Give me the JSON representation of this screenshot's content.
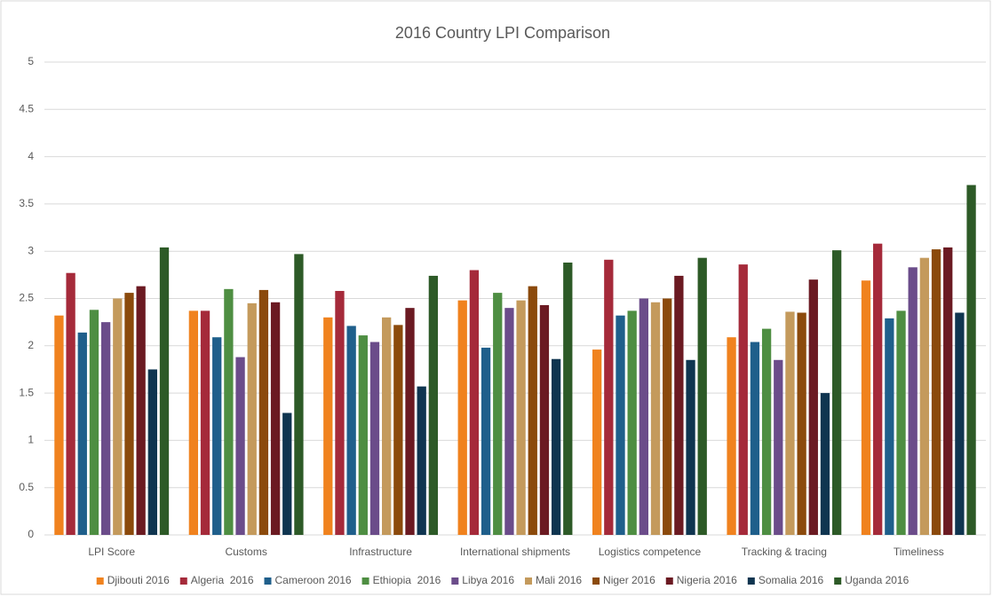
{
  "chart_data": {
    "type": "bar",
    "title": "2016 Country LPI Comparison",
    "categories": [
      "LPI Score",
      "Customs",
      "Infrastructure",
      "International shipments",
      "Logistics competence",
      "Tracking & tracing",
      "Timeliness"
    ],
    "series": [
      {
        "name": "Djibouti 2016",
        "color": "#f0821e",
        "values": [
          2.32,
          2.37,
          2.3,
          2.48,
          1.96,
          2.09,
          2.69
        ]
      },
      {
        "name": "Algeria  2016",
        "color": "#a52a3a",
        "values": [
          2.77,
          2.37,
          2.58,
          2.8,
          2.91,
          2.86,
          3.08
        ]
      },
      {
        "name": "Cameroon 2016",
        "color": "#1f5f8b",
        "values": [
          2.14,
          2.09,
          2.21,
          1.98,
          2.32,
          2.04,
          2.29
        ]
      },
      {
        "name": "Ethiopia  2016",
        "color": "#4e8e42",
        "values": [
          2.38,
          2.6,
          2.11,
          2.56,
          2.37,
          2.18,
          2.37
        ]
      },
      {
        "name": "Libya 2016",
        "color": "#6b4c8a",
        "values": [
          2.25,
          1.88,
          2.04,
          2.4,
          2.5,
          1.85,
          2.83
        ]
      },
      {
        "name": "Mali 2016",
        "color": "#c49a5c",
        "values": [
          2.5,
          2.45,
          2.3,
          2.48,
          2.46,
          2.36,
          2.93
        ]
      },
      {
        "name": "Niger 2016",
        "color": "#8b4a0c",
        "values": [
          2.56,
          2.59,
          2.22,
          2.63,
          2.5,
          2.35,
          3.02
        ]
      },
      {
        "name": "Nigeria 2016",
        "color": "#6b1a22",
        "values": [
          2.63,
          2.46,
          2.4,
          2.43,
          2.74,
          2.7,
          3.04
        ]
      },
      {
        "name": "Somalia 2016",
        "color": "#0f3550",
        "values": [
          1.75,
          1.29,
          1.57,
          1.86,
          1.85,
          1.5,
          2.35
        ]
      },
      {
        "name": "Uganda 2016",
        "color": "#2d5a27",
        "values": [
          3.04,
          2.97,
          2.74,
          2.88,
          2.93,
          3.01,
          3.7
        ]
      }
    ],
    "ylim": [
      0,
      5
    ],
    "yticks": [
      0,
      0.5,
      1,
      1.5,
      2,
      2.5,
      3,
      3.5,
      4,
      4.5,
      5
    ],
    "grid": true,
    "legend": "bottom"
  }
}
